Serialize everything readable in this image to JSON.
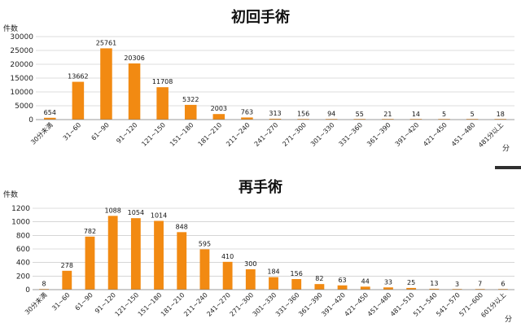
{
  "chart_data": [
    {
      "type": "bar",
      "title": "初回手術",
      "ylabel": "件数",
      "xlabel": "分",
      "ylim": [
        0,
        30000
      ],
      "yticks": [
        0,
        5000,
        10000,
        15000,
        20000,
        25000,
        30000
      ],
      "grid": true,
      "color": "#f28a12",
      "categories": [
        "30分未満",
        "31~60",
        "61~90",
        "91~120",
        "121~150",
        "151~180",
        "181~210",
        "211~240",
        "241~270",
        "271~300",
        "301~330",
        "331~360",
        "361~390",
        "391~420",
        "421~450",
        "451~480",
        "481分以上"
      ],
      "values": [
        654,
        13662,
        25761,
        20306,
        11708,
        5322,
        2003,
        763,
        313,
        156,
        94,
        55,
        21,
        14,
        5,
        5,
        18
      ]
    },
    {
      "type": "bar",
      "title": "再手術",
      "ylabel": "件数",
      "xlabel": "分",
      "ylim": [
        0,
        1200
      ],
      "yticks": [
        0,
        200,
        400,
        600,
        800,
        1000,
        1200
      ],
      "grid": true,
      "color": "#f28a12",
      "categories": [
        "30分未満",
        "31~60",
        "61~90",
        "91~120",
        "121~150",
        "151~180",
        "181~210",
        "211~240",
        "241~270",
        "271~300",
        "301~330",
        "331~360",
        "361~390",
        "391~420",
        "421~450",
        "451~480",
        "481~510",
        "511~540",
        "541~570",
        "571~600",
        "601分以上"
      ],
      "values": [
        8,
        278,
        782,
        1088,
        1054,
        1014,
        848,
        595,
        410,
        300,
        184,
        156,
        82,
        63,
        44,
        33,
        25,
        13,
        3,
        7,
        6
      ]
    }
  ]
}
